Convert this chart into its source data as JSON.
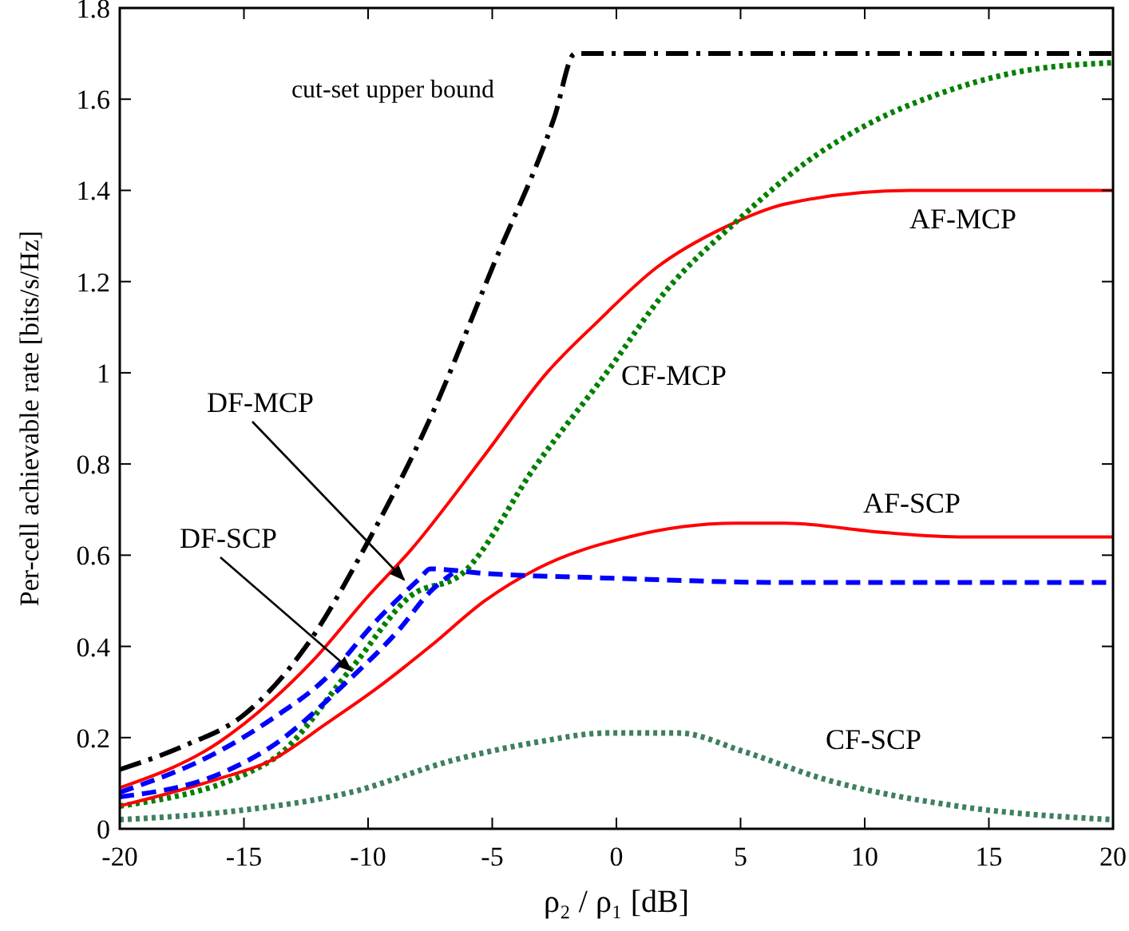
{
  "chart_data": {
    "type": "line",
    "xlabel": "ρ₂ / ρ₁ [dB]",
    "ylabel": "Per-cell achievable rate [bits/s/Hz]",
    "xlim": [
      -20,
      20
    ],
    "ylim": [
      0,
      1.8
    ],
    "xticks": [
      -20,
      -15,
      -10,
      -5,
      0,
      5,
      10,
      15,
      20
    ],
    "yticks": [
      0,
      0.2,
      0.4,
      0.6,
      0.8,
      1,
      1.2,
      1.4,
      1.6,
      1.8
    ],
    "grid": false,
    "marker": "none",
    "series": [
      {
        "name": "cut-set upper bound",
        "color": "#000000",
        "line_style": "dashdot",
        "x": [
          -20,
          -17.5,
          -15,
          -12.5,
          -10,
          -7.5,
          -5,
          -2.5,
          -1.67,
          20
        ],
        "values": [
          0.13,
          0.18,
          0.25,
          0.4,
          0.63,
          0.9,
          1.23,
          1.56,
          1.7,
          1.7
        ]
      },
      {
        "name": "AF-MCP",
        "color": "#ff0000",
        "line_style": "solid",
        "x": [
          -20,
          -16,
          -13.9,
          -12.2,
          -10,
          -8.3,
          -5.3,
          -2.8,
          -0.8,
          1.6,
          4.4,
          6.8,
          11.8,
          13.7,
          20
        ],
        "values": [
          0.09,
          0.19,
          0.28,
          0.37,
          0.51,
          0.61,
          0.82,
          1.0,
          1.11,
          1.23,
          1.32,
          1.37,
          1.4,
          1.4,
          1.4
        ]
      },
      {
        "name": "CF-MCP",
        "color": "#008000",
        "line_style": "dotted",
        "x": [
          -20,
          -13.9,
          -10.7,
          -8.3,
          -6.2,
          -3.2,
          -0.4,
          2,
          4.8,
          7.6,
          10.3,
          12.9,
          16.2,
          20
        ],
        "values": [
          0.05,
          0.15,
          0.35,
          0.51,
          0.56,
          0.8,
          1.0,
          1.18,
          1.33,
          1.46,
          1.55,
          1.61,
          1.66,
          1.68
        ]
      },
      {
        "name": "AF-SCP",
        "color": "#ff0000",
        "line_style": "solid",
        "x": [
          -20,
          -16,
          -13.9,
          -11.7,
          -9.6,
          -7.5,
          -5.3,
          -3.2,
          0.5,
          4.8,
          6.8,
          10.7,
          14,
          16.2,
          20
        ],
        "values": [
          0.05,
          0.11,
          0.15,
          0.23,
          0.31,
          0.4,
          0.5,
          0.57,
          0.64,
          0.67,
          0.67,
          0.65,
          0.64,
          0.64,
          0.64
        ]
      },
      {
        "name": "DF-MCP",
        "color": "#0000ff",
        "line_style": "dashed",
        "x": [
          -20,
          -16,
          -13.9,
          -11.7,
          -9.6,
          -7.9,
          -7.5,
          -5.3,
          -0.4,
          7,
          20
        ],
        "values": [
          0.08,
          0.17,
          0.24,
          0.33,
          0.46,
          0.55,
          0.57,
          0.56,
          0.55,
          0.54,
          0.54
        ]
      },
      {
        "name": "DF-SCP",
        "color": "#0000ff",
        "line_style": "dashed",
        "x": [
          -20,
          -16,
          -13.9,
          -10.9,
          -8.7,
          -7.5,
          -6.6
        ],
        "values": [
          0.07,
          0.12,
          0.18,
          0.32,
          0.44,
          0.52,
          0.56
        ]
      },
      {
        "name": "CF-SCP",
        "color": "#3f7f5f",
        "line_style": "dotted",
        "x": [
          -20,
          -15.2,
          -10.7,
          -6.6,
          -3.2,
          -0.4,
          2.5,
          5.1,
          8.3,
          13.7,
          20
        ],
        "values": [
          0.02,
          0.04,
          0.08,
          0.15,
          0.19,
          0.21,
          0.21,
          0.17,
          0.11,
          0.05,
          0.02
        ]
      }
    ]
  }
}
